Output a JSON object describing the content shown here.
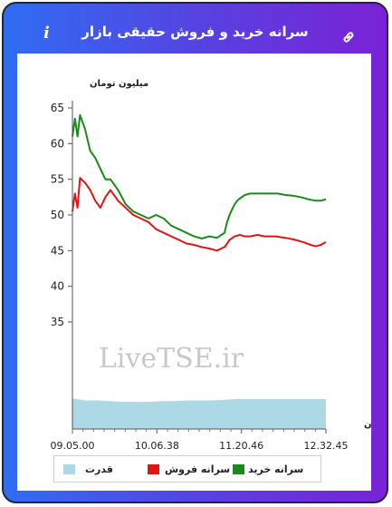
{
  "header": {
    "title": "سرانه خرید و فروش حقیقی بازار",
    "info_icon": "info-icon",
    "link_icon": "link-icon"
  },
  "chart_data": {
    "type": "line",
    "ylabel": "میلیون تومان",
    "xlabel": "زمان",
    "yticks": [
      35,
      40,
      45,
      50,
      55,
      60,
      65
    ],
    "ylim": [
      20,
      65
    ],
    "xticks": [
      "09.05.00",
      "10.06.38",
      "11.20.46",
      "12.32.45"
    ],
    "watermark": "LiveTSE.ir",
    "grid": false,
    "legend_position": "bottom",
    "legend": [
      "سرانه خرید",
      "سرانه فروش",
      "قدرت"
    ],
    "series": [
      {
        "name": "سرانه خرید",
        "color": "#1a8a1a",
        "x": [
          0,
          0.01,
          0.02,
          0.03,
          0.05,
          0.07,
          0.09,
          0.11,
          0.13,
          0.15,
          0.18,
          0.21,
          0.24,
          0.27,
          0.3,
          0.33,
          0.36,
          0.39,
          0.42,
          0.45,
          0.48,
          0.51,
          0.54,
          0.57,
          0.6,
          0.61,
          0.62,
          0.63,
          0.64,
          0.65,
          0.66,
          0.68,
          0.7,
          0.72,
          0.75,
          0.78,
          0.81,
          0.84,
          0.87,
          0.9,
          0.93,
          0.96,
          0.98,
          1.0
        ],
        "y": [
          61,
          63.5,
          61,
          64,
          62,
          59,
          58,
          56.5,
          55,
          55,
          53.5,
          51.5,
          50.5,
          50,
          49.5,
          50,
          49.5,
          48.5,
          48,
          47.5,
          47,
          46.7,
          47,
          46.8,
          47.5,
          49,
          50,
          50.8,
          51.5,
          52,
          52.3,
          52.8,
          53,
          53,
          53,
          53,
          53,
          52.8,
          52.7,
          52.5,
          52.2,
          52,
          52,
          52.2
        ]
      },
      {
        "name": "سرانه فروش",
        "color": "#e31414",
        "x": [
          0,
          0.01,
          0.02,
          0.03,
          0.05,
          0.07,
          0.09,
          0.11,
          0.13,
          0.15,
          0.18,
          0.21,
          0.24,
          0.27,
          0.3,
          0.33,
          0.36,
          0.39,
          0.42,
          0.45,
          0.48,
          0.51,
          0.54,
          0.57,
          0.6,
          0.62,
          0.64,
          0.66,
          0.68,
          0.7,
          0.73,
          0.76,
          0.8,
          0.84,
          0.88,
          0.91,
          0.94,
          0.96,
          0.98,
          1.0
        ],
        "y": [
          50.5,
          53,
          51,
          55.2,
          54.5,
          53.5,
          52,
          51,
          52.5,
          53.5,
          52,
          51,
          50,
          49.5,
          49,
          48,
          47.5,
          47,
          46.5,
          46,
          45.8,
          45.5,
          45.3,
          45,
          45.5,
          46.5,
          47,
          47.2,
          47,
          47,
          47.2,
          47,
          47,
          46.8,
          46.5,
          46.2,
          45.8,
          45.6,
          45.8,
          46.2
        ]
      },
      {
        "name": "قدرت",
        "color": "#add8e6",
        "type": "area",
        "x": [
          0,
          0.05,
          0.1,
          0.15,
          0.2,
          0.25,
          0.3,
          0.35,
          0.4,
          0.45,
          0.5,
          0.55,
          0.6,
          0.65,
          0.7,
          0.75,
          0.8,
          0.85,
          0.9,
          0.95,
          1.0
        ],
        "y": [
          24.3,
          24.0,
          24.0,
          23.9,
          23.8,
          23.8,
          23.8,
          23.9,
          23.9,
          24.0,
          24.0,
          24.0,
          24.1,
          24.2,
          24.2,
          24.2,
          24.2,
          24.2,
          24.2,
          24.2,
          24.2
        ]
      }
    ]
  }
}
